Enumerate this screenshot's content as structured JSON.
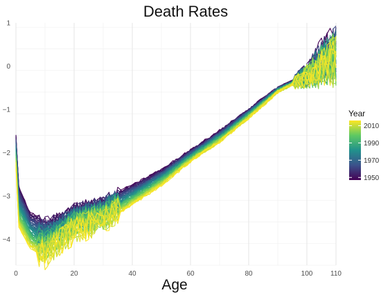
{
  "chart_data": {
    "type": "line",
    "title": "Death Rates",
    "xlabel": "Age",
    "ylabel": "",
    "xlim": [
      0,
      110
    ],
    "ylim": [
      -4.6,
      1.0
    ],
    "x_ticks": [
      0,
      20,
      40,
      60,
      80,
      100,
      110
    ],
    "y_ticks": [
      1,
      0,
      -1,
      -2,
      -3,
      -4
    ],
    "grid": true,
    "legend": {
      "title": "Year",
      "placement": "right",
      "type": "colorbar",
      "ticks": [
        2010,
        1990,
        1970,
        1950
      ],
      "range": [
        1947,
        2016
      ]
    },
    "colormap": [
      "#440154",
      "#3b528b",
      "#21918c",
      "#5ec962",
      "#fde725"
    ],
    "series_by": "year",
    "year_range": [
      1947,
      2016
    ],
    "age_range": [
      0,
      110
    ],
    "key_points": {
      "age": [
        0,
        1,
        5,
        10,
        15,
        20,
        30,
        40,
        50,
        60,
        70,
        80,
        90,
        100,
        105,
        110
      ],
      "first_year": [
        -1.6,
        -2.8,
        -3.4,
        -3.6,
        -3.5,
        -3.3,
        -3.1,
        -2.75,
        -2.4,
        -1.95,
        -1.5,
        -1.0,
        -0.5,
        -0.2,
        0.2,
        0.4
      ],
      "last_year": [
        -2.3,
        -3.7,
        -4.2,
        -4.4,
        -4.1,
        -3.8,
        -3.6,
        -3.2,
        -2.75,
        -2.2,
        -1.75,
        -1.2,
        -0.6,
        -0.25,
        -0.1,
        0.1
      ]
    }
  }
}
